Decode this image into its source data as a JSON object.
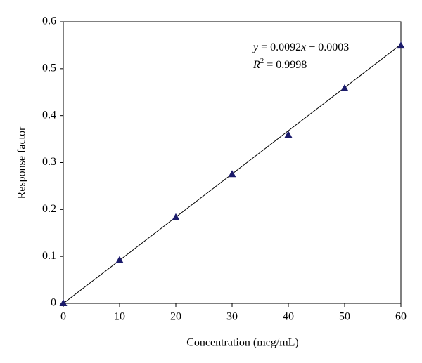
{
  "chart_data": {
    "type": "scatter",
    "x_label": "Concentration (mcg/mL)",
    "y_label": "Response factor",
    "series": [
      {
        "name": "Response factor",
        "color": "#1b1b6b",
        "x": [
          0,
          10,
          20,
          30,
          40,
          50,
          60
        ],
        "values": [
          0,
          0.092,
          0.183,
          0.275,
          0.359,
          0.458,
          0.549
        ]
      }
    ],
    "trendline": {
      "slope": 0.0092,
      "intercept": -0.0003,
      "color": "#000000"
    },
    "annotation": {
      "equation": [
        "y",
        " = 0.0092",
        "x",
        " − 0.0003"
      ],
      "r_squared": [
        "R",
        "2",
        " = 0.9998"
      ]
    },
    "xlim": [
      0,
      60
    ],
    "xticks": [
      0,
      10,
      20,
      30,
      40,
      50,
      60
    ],
    "ylim": [
      0,
      0.6
    ],
    "yticks": [
      0,
      0.1,
      0.2,
      0.3,
      0.4,
      0.5,
      0.6
    ],
    "grid": false
  }
}
